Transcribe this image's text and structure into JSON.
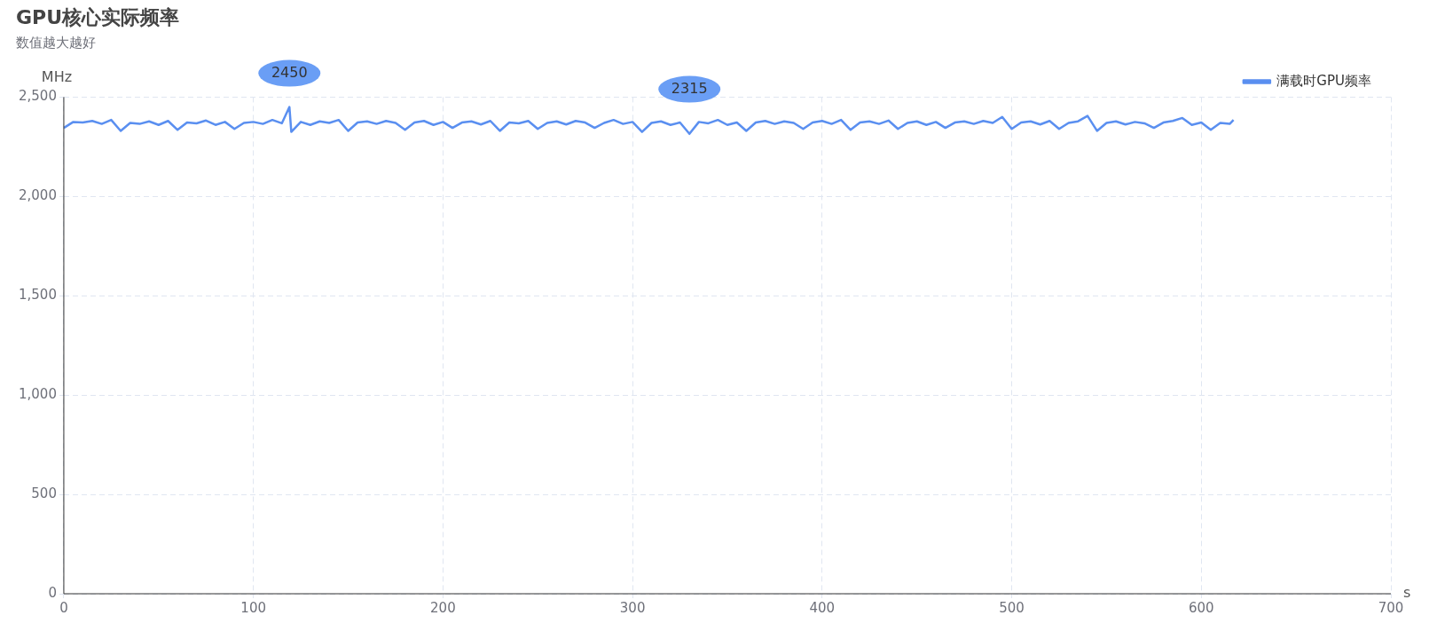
{
  "chart_data": {
    "type": "line",
    "title": "GPU核心实际频率",
    "subtitle": "数值越大越好",
    "xlabel": "s",
    "ylabel": "MHz",
    "xlim": [
      0,
      700
    ],
    "xticks": [
      0,
      100,
      200,
      300,
      400,
      500,
      600,
      700
    ],
    "ylim": [
      0,
      2500
    ],
    "yticks": [
      0,
      {
        "value": 500,
        "label": "500"
      },
      {
        "value": 1000,
        "label": "1,000"
      },
      {
        "value": 1500,
        "label": "1,500"
      },
      {
        "value": 2000,
        "label": "2,000"
      },
      {
        "value": 2500,
        "label": "2,500"
      }
    ],
    "grid": true,
    "legend": "top right",
    "marker": "none",
    "annotations": [
      {
        "text": "2450",
        "x": 119,
        "y": 2450
      },
      {
        "text": "2315",
        "x": 330,
        "y": 2315
      }
    ],
    "series": [
      {
        "name": "满载时GPU频率",
        "color": "#5a8ff0",
        "x": [
          0,
          5,
          10,
          15,
          20,
          25,
          30,
          35,
          40,
          45,
          50,
          55,
          60,
          65,
          70,
          75,
          80,
          85,
          90,
          95,
          100,
          105,
          110,
          115,
          119,
          120,
          125,
          130,
          135,
          140,
          145,
          150,
          155,
          160,
          165,
          170,
          175,
          180,
          185,
          190,
          195,
          200,
          205,
          210,
          215,
          220,
          225,
          230,
          235,
          240,
          245,
          250,
          255,
          260,
          265,
          270,
          275,
          280,
          285,
          290,
          295,
          300,
          305,
          310,
          315,
          320,
          325,
          330,
          335,
          340,
          345,
          350,
          355,
          360,
          365,
          370,
          375,
          380,
          385,
          390,
          395,
          400,
          405,
          410,
          415,
          420,
          425,
          430,
          435,
          440,
          445,
          450,
          455,
          460,
          465,
          470,
          475,
          480,
          485,
          490,
          495,
          500,
          505,
          510,
          515,
          520,
          525,
          530,
          535,
          540,
          545,
          550,
          555,
          560,
          565,
          570,
          575,
          580,
          585,
          590,
          595,
          600,
          605,
          610,
          615,
          617
        ],
        "values": [
          2345,
          2375,
          2372,
          2380,
          2365,
          2385,
          2330,
          2370,
          2365,
          2378,
          2360,
          2380,
          2335,
          2372,
          2368,
          2382,
          2360,
          2375,
          2340,
          2370,
          2375,
          2365,
          2385,
          2368,
          2450,
          2325,
          2375,
          2360,
          2378,
          2370,
          2385,
          2330,
          2372,
          2378,
          2365,
          2380,
          2370,
          2335,
          2372,
          2380,
          2360,
          2375,
          2345,
          2372,
          2378,
          2362,
          2380,
          2330,
          2372,
          2368,
          2380,
          2340,
          2370,
          2378,
          2362,
          2380,
          2372,
          2345,
          2370,
          2385,
          2365,
          2375,
          2325,
          2370,
          2378,
          2360,
          2372,
          2315,
          2375,
          2368,
          2385,
          2360,
          2372,
          2330,
          2372,
          2380,
          2365,
          2378,
          2370,
          2340,
          2372,
          2380,
          2365,
          2385,
          2335,
          2372,
          2378,
          2365,
          2382,
          2340,
          2370,
          2378,
          2360,
          2375,
          2345,
          2372,
          2378,
          2365,
          2380,
          2370,
          2400,
          2340,
          2372,
          2378,
          2362,
          2380,
          2340,
          2370,
          2378,
          2405,
          2330,
          2370,
          2378,
          2362,
          2375,
          2368,
          2345,
          2372,
          2380,
          2395,
          2360,
          2372,
          2335,
          2370,
          2365,
          2385
        ]
      }
    ]
  }
}
